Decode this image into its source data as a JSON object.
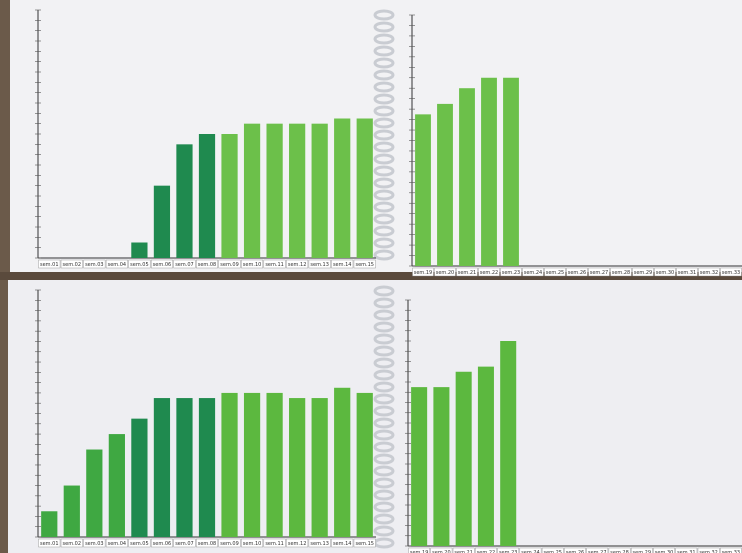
{
  "chart_data": [
    {
      "type": "bar",
      "categories": [
        "sem.01",
        "sem.02",
        "sem.03",
        "sem.04",
        "sem.05",
        "sem.06",
        "sem.07",
        "sem.08",
        "sem.09",
        "sem.10",
        "sem.11",
        "sem.12",
        "sem.13",
        "sem.14",
        "sem.15"
      ],
      "values": [
        null,
        null,
        null,
        null,
        1.5,
        7,
        11,
        12,
        12,
        13,
        13,
        13,
        13,
        13.5,
        13.5
      ],
      "colors": [
        null,
        null,
        null,
        null,
        "#1f8a4f",
        "#1f8a4f",
        "#1f8a4f",
        "#1f8a4f",
        "#6cc04a",
        "#6cc04a",
        "#6cc04a",
        "#6cc04a",
        "#6cc04a",
        "#6cc04a",
        "#6cc04a"
      ],
      "ylim": [
        0,
        24
      ]
    },
    {
      "type": "bar",
      "categories": [
        "sem.19",
        "sem.20",
        "sem.21",
        "sem.22",
        "sem.23",
        "sem.24",
        "sem.25",
        "sem.26",
        "sem.27",
        "sem.28",
        "sem.29",
        "sem.30",
        "sem.31",
        "sem.32",
        "sem.33"
      ],
      "values": [
        14.5,
        15.5,
        17,
        18,
        18,
        null,
        null,
        null,
        null,
        null,
        null,
        null,
        null,
        null,
        null
      ],
      "colors": [
        "#6cc04a",
        "#6cc04a",
        "#6cc04a",
        "#6cc04a",
        "#6cc04a",
        null,
        null,
        null,
        null,
        null,
        null,
        null,
        null,
        null,
        null
      ],
      "ylim": [
        0,
        24
      ]
    },
    {
      "type": "bar",
      "categories": [
        "sem.01",
        "sem.02",
        "sem.03",
        "sem.04",
        "sem.05",
        "sem.06",
        "sem.07",
        "sem.08",
        "sem.09",
        "sem.10",
        "sem.11",
        "sem.12",
        "sem.13",
        "sem.14",
        "sem.15"
      ],
      "values": [
        2.5,
        5,
        8.5,
        10,
        11.5,
        13.5,
        13.5,
        13.5,
        14,
        14,
        14,
        13.5,
        13.5,
        14.5,
        14
      ],
      "colors": [
        "#3fa842",
        "#3fa842",
        "#3fa842",
        "#3fa842",
        "#1f8a4f",
        "#1f8a4f",
        "#1f8a4f",
        "#1f8a4f",
        "#5cb83f",
        "#5cb83f",
        "#5cb83f",
        "#5cb83f",
        "#5cb83f",
        "#5cb83f",
        "#5cb83f"
      ],
      "ylim": [
        0,
        24
      ]
    },
    {
      "type": "bar",
      "categories": [
        "sem.19",
        "sem.20",
        "sem.21",
        "sem.22",
        "sem.23",
        "sem.24",
        "sem.25",
        "sem.26",
        "sem.27",
        "sem.28",
        "sem.29",
        "sem.30",
        "sem.31",
        "sem.32",
        "sem.33"
      ],
      "values": [
        15.5,
        15.5,
        17,
        17.5,
        20,
        null,
        null,
        null,
        null,
        null,
        null,
        null,
        null,
        null,
        null
      ],
      "colors": [
        "#5cb83f",
        "#5cb83f",
        "#5cb83f",
        "#5cb83f",
        "#5cb83f",
        null,
        null,
        null,
        null,
        null,
        null,
        null,
        null,
        null,
        null
      ],
      "ylim": [
        0,
        24
      ]
    }
  ]
}
